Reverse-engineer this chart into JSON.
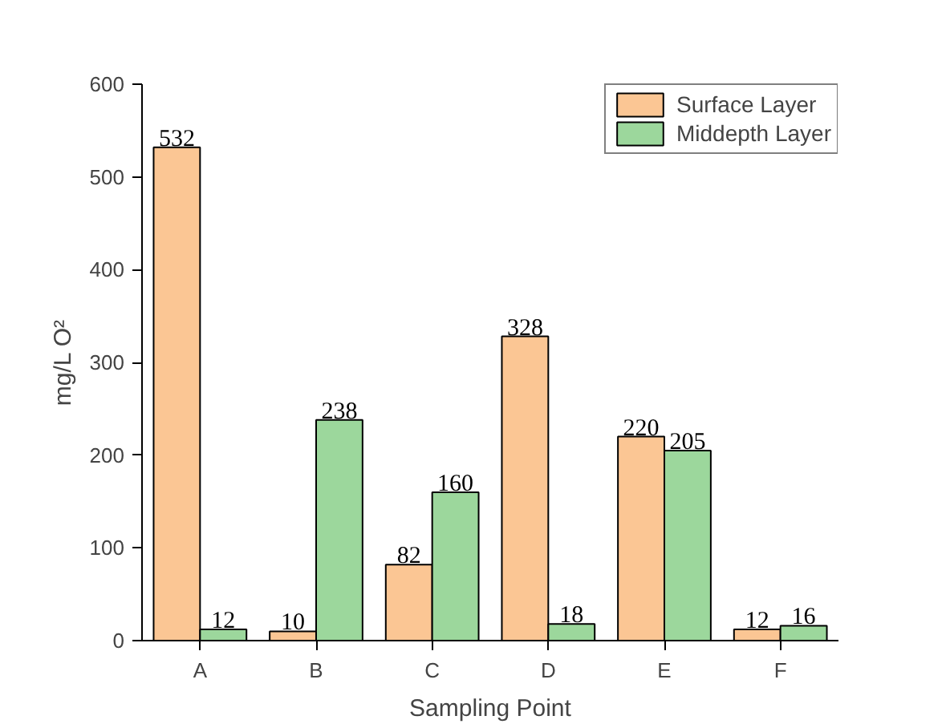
{
  "chart_data": {
    "type": "bar",
    "xlabel": "Sampling Point",
    "ylabel": "mg/L O²",
    "categories": [
      "A",
      "B",
      "C",
      "D",
      "E",
      "F"
    ],
    "series": [
      {
        "name": "Surface Layer",
        "color": "#fbc694",
        "values": [
          532,
          10,
          82,
          328,
          220,
          12
        ]
      },
      {
        "name": "Middepth Layer",
        "color": "#9cd79c",
        "values": [
          12,
          238,
          160,
          18,
          205,
          16
        ]
      }
    ],
    "ylim": [
      0,
      600
    ],
    "yticks": [
      0,
      100,
      200,
      300,
      400,
      500,
      600
    ],
    "data_labels": true,
    "legend": "top right",
    "grid": false
  }
}
